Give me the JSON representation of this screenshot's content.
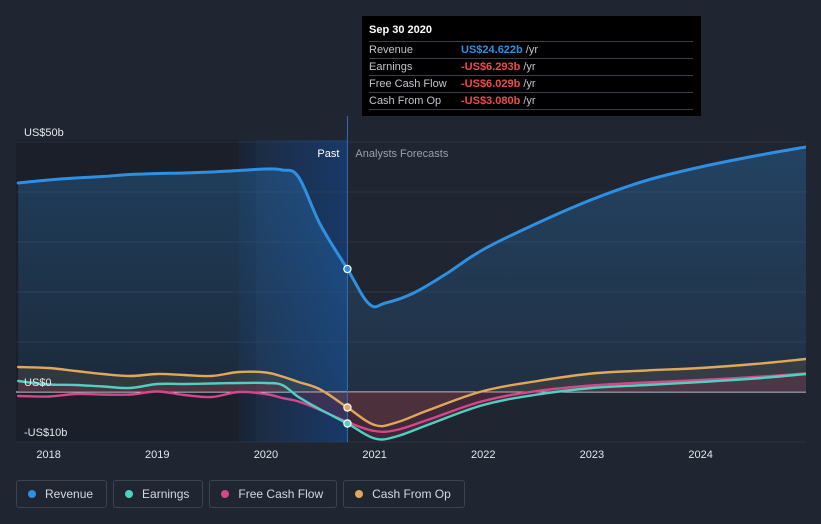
{
  "tooltip": {
    "date": "Sep 30 2020",
    "rows": [
      {
        "label": "Revenue",
        "value": "US$24.622b",
        "unit": "/yr",
        "color": "#2f8fe0"
      },
      {
        "label": "Earnings",
        "value": "-US$6.293b",
        "unit": "/yr",
        "color": "#ef4b4b"
      },
      {
        "label": "Free Cash Flow",
        "value": "-US$6.029b",
        "unit": "/yr",
        "color": "#ef4b4b"
      },
      {
        "label": "Cash From Op",
        "value": "-US$3.080b",
        "unit": "/yr",
        "color": "#ef4b4b"
      }
    ]
  },
  "legend": [
    {
      "label": "Revenue",
      "color": "#2f8fe0"
    },
    {
      "label": "Earnings",
      "color": "#4fd1c1"
    },
    {
      "label": "Free Cash Flow",
      "color": "#d6478a"
    },
    {
      "label": "Cash From Op",
      "color": "#e0a85a"
    }
  ],
  "chart_data": {
    "type": "line",
    "title": "",
    "xlabel": "",
    "ylabel": "",
    "ylim": [
      -10,
      50
    ],
    "xlim": [
      2017.7,
      2024.97
    ],
    "y_tick_labels": [
      {
        "value": 50,
        "label": "US$50b"
      },
      {
        "value": 0,
        "label": "US$0"
      },
      {
        "value": -10,
        "label": "-US$10b"
      }
    ],
    "x_ticks": [
      {
        "value": 2018,
        "label": "2018"
      },
      {
        "value": 2019,
        "label": "2019"
      },
      {
        "value": 2020,
        "label": "2020"
      },
      {
        "value": 2021,
        "label": "2021"
      },
      {
        "value": 2022,
        "label": "2022"
      },
      {
        "value": 2023,
        "label": "2023"
      },
      {
        "value": 2024,
        "label": "2024"
      }
    ],
    "past_label": "Past",
    "forecast_label": "Analysts Forecasts",
    "divider_x": 2020.75,
    "highlight_start": 2019.75,
    "series": [
      {
        "name": "Revenue",
        "color": "#2f8fe0",
        "x": [
          2017.72,
          2018.0,
          2018.25,
          2018.5,
          2018.75,
          2019.0,
          2019.25,
          2019.5,
          2019.75,
          2020.0,
          2020.15,
          2020.3,
          2020.5,
          2020.75,
          2020.95,
          2021.1,
          2021.35,
          2021.65,
          2022.0,
          2022.5,
          2023.0,
          2023.5,
          2024.0,
          2024.5,
          2024.97
        ],
        "y": [
          41.8,
          42.4,
          42.8,
          43.1,
          43.5,
          43.7,
          43.8,
          44.0,
          44.3,
          44.6,
          44.4,
          43.0,
          33.5,
          24.6,
          17.6,
          17.8,
          19.7,
          23.5,
          28.5,
          33.8,
          38.5,
          42.3,
          45.0,
          47.2,
          49.0
        ]
      },
      {
        "name": "Earnings",
        "color": "#4fd1c1",
        "x": [
          2017.72,
          2018.0,
          2018.25,
          2018.5,
          2018.75,
          2019.0,
          2019.25,
          2019.5,
          2019.75,
          2020.0,
          2020.15,
          2020.3,
          2020.5,
          2020.75,
          2021.0,
          2021.2,
          2021.5,
          2022.0,
          2022.5,
          2023.0,
          2023.5,
          2024.0,
          2024.5,
          2024.97
        ],
        "y": [
          2.2,
          1.5,
          1.4,
          1.1,
          0.8,
          1.6,
          1.6,
          1.7,
          1.8,
          1.8,
          1.4,
          -1.0,
          -3.5,
          -6.3,
          -9.3,
          -8.9,
          -6.5,
          -2.6,
          -0.5,
          0.8,
          1.4,
          2.0,
          2.7,
          3.6
        ]
      },
      {
        "name": "Free Cash Flow",
        "color": "#d6478a",
        "x": [
          2017.72,
          2018.0,
          2018.25,
          2018.5,
          2018.75,
          2019.0,
          2019.25,
          2019.5,
          2019.75,
          2020.0,
          2020.15,
          2020.3,
          2020.5,
          2020.75,
          2021.0,
          2021.2,
          2021.5,
          2022.0,
          2022.5,
          2023.0,
          2023.5,
          2024.0,
          2024.5,
          2024.97
        ],
        "y": [
          -0.8,
          -0.9,
          -0.4,
          -0.5,
          -0.5,
          0.1,
          -0.6,
          -1.0,
          0.0,
          -0.4,
          -1.2,
          -1.9,
          -3.6,
          -6.0,
          -7.8,
          -7.6,
          -5.5,
          -1.8,
          0.2,
          1.3,
          1.9,
          2.4,
          3.0,
          3.7
        ]
      },
      {
        "name": "Cash From Op",
        "color": "#e0a85a",
        "x": [
          2017.72,
          2018.0,
          2018.25,
          2018.5,
          2018.75,
          2019.0,
          2019.25,
          2019.5,
          2019.75,
          2020.0,
          2020.15,
          2020.3,
          2020.5,
          2020.75,
          2021.0,
          2021.2,
          2021.5,
          2022.0,
          2022.5,
          2023.0,
          2023.5,
          2024.0,
          2024.5,
          2024.97
        ],
        "y": [
          5.0,
          4.8,
          4.2,
          3.6,
          3.2,
          3.6,
          3.4,
          3.2,
          4.0,
          3.9,
          3.1,
          2.0,
          0.5,
          -3.1,
          -6.6,
          -6.1,
          -3.6,
          0.2,
          2.2,
          3.7,
          4.3,
          4.8,
          5.6,
          6.6
        ]
      }
    ],
    "markers": [
      {
        "series": "Revenue",
        "x": 2020.75,
        "y": 24.6
      },
      {
        "series": "Cash From Op",
        "x": 2020.75,
        "y": -3.1
      },
      {
        "series": "Earnings",
        "x": 2020.75,
        "y": -6.3
      }
    ]
  }
}
